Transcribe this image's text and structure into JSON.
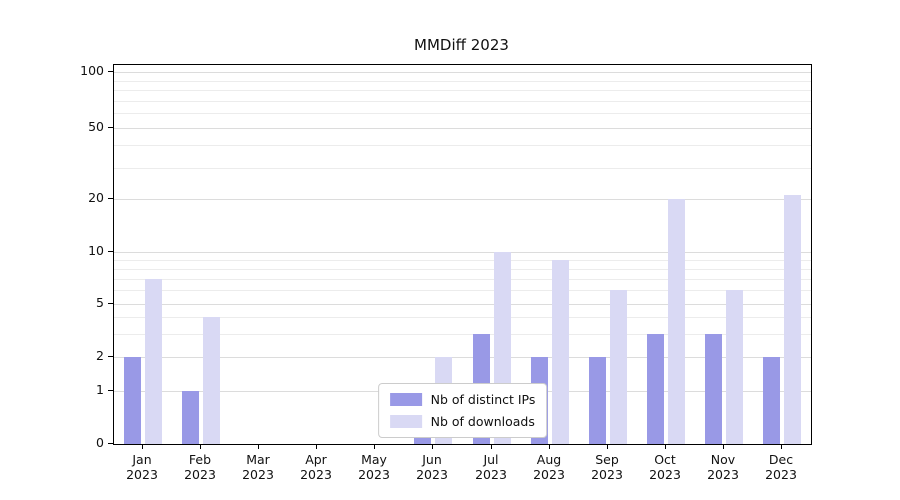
{
  "title": "MMDiff 2023",
  "chart_data": {
    "type": "bar",
    "title": "MMDiff 2023",
    "x_months": [
      "Jan",
      "Feb",
      "Mar",
      "Apr",
      "May",
      "Jun",
      "Jul",
      "Aug",
      "Sep",
      "Oct",
      "Nov",
      "Dec"
    ],
    "x_year": "2023",
    "series": [
      {
        "name": "Nb of distinct IPs",
        "color": "#9999e6",
        "values": [
          2,
          1,
          0,
          0,
          0,
          1,
          3,
          2,
          2,
          3,
          3,
          2
        ]
      },
      {
        "name": "Nb of downloads",
        "color": "#d9d9f4",
        "values": [
          7,
          4,
          0,
          0,
          0,
          2,
          10,
          9,
          6,
          20,
          6,
          21
        ]
      }
    ],
    "yscale": "symlog",
    "major_yticks": [
      0,
      1,
      2,
      5,
      10,
      20,
      50,
      100
    ],
    "minor_yticks": [
      3,
      4,
      6,
      7,
      8,
      9,
      30,
      40,
      60,
      70,
      80,
      90
    ],
    "ylim": [
      0,
      110
    ],
    "grid": true,
    "legend_position": "lower center"
  },
  "colors": {
    "bar_distinct_ips": "#9999e6",
    "bar_downloads": "#d9d9f4",
    "grid_major": "#dcdcdc",
    "grid_minor": "#ececec",
    "axis": "#000000",
    "background": "#ffffff"
  }
}
